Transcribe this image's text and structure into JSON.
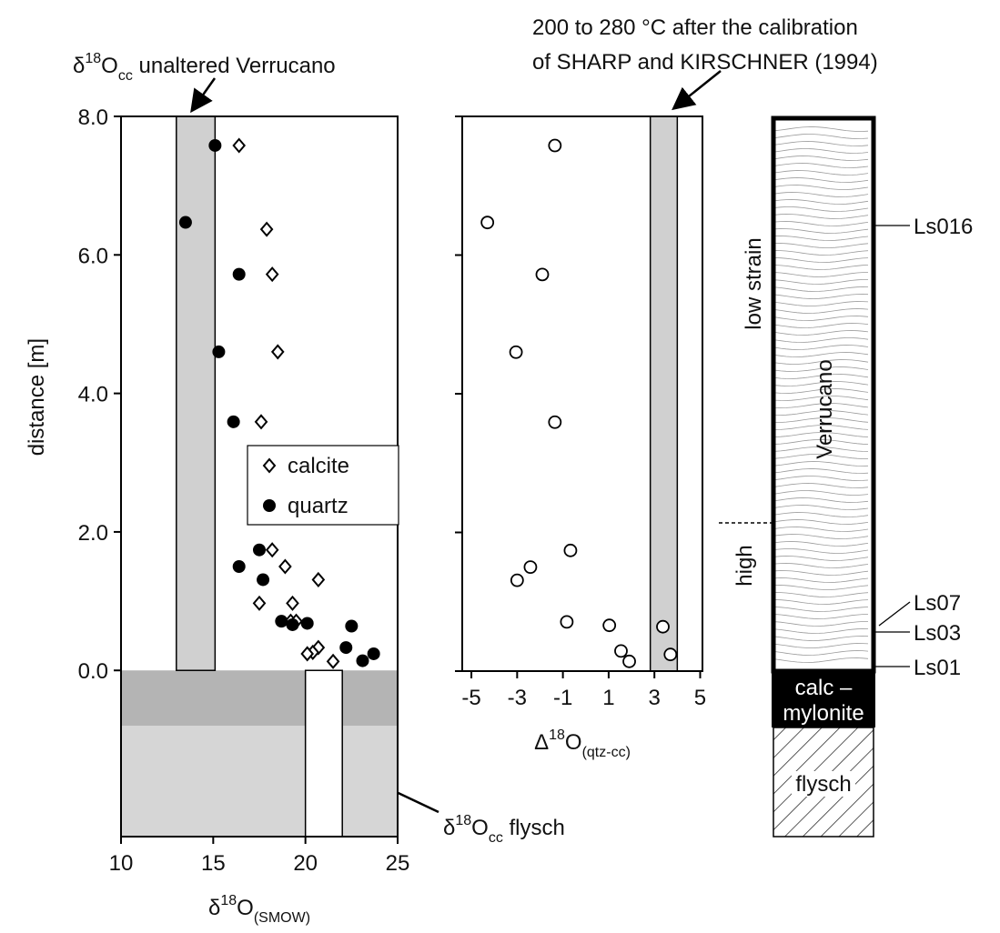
{
  "chart_data": [
    {
      "type": "scatter",
      "xlabel": {
        "pre": "δ",
        "sup": "18",
        "mid": "O",
        "sub": "(SMOW)"
      },
      "ylabel": "distance [m]",
      "xlim": [
        10,
        25
      ],
      "xticks": [
        10,
        15,
        20,
        25
      ],
      "ylim": [
        -2.4,
        8
      ],
      "yticks": [
        {
          "value": 0,
          "label": "0.0"
        },
        {
          "value": 2,
          "label": "2.0"
        },
        {
          "value": 4,
          "label": "4.0"
        },
        {
          "value": 6,
          "label": "6.0"
        },
        {
          "value": 8,
          "label": "8.0"
        }
      ],
      "zones": [
        {
          "y": [
            -2.4,
            -0.8
          ],
          "color": "#d6d6d6"
        },
        {
          "y": [
            -0.8,
            0
          ],
          "color": "#b4b4b4"
        }
      ],
      "bands": [
        {
          "x": [
            13,
            15.1
          ],
          "y": [
            0,
            8
          ],
          "color": "#d0d0d0",
          "label": {
            "pre": "δ",
            "sup": "18",
            "mid": "O",
            "sub": "cc",
            "post": " unaltered Verrucano"
          }
        },
        {
          "x": [
            20,
            22
          ],
          "y": [
            -2.4,
            0
          ],
          "color": "#ffffff",
          "label": {
            "pre": "δ",
            "sup": "18",
            "mid": "O",
            "sub": "cc",
            "post": " flysch"
          }
        }
      ],
      "legend": true,
      "series": [
        {
          "name": "calcite",
          "marker": "diamond",
          "color": "#000000",
          "x": [
            16.4,
            17.9,
            18.2,
            18.5,
            17.6,
            18.2,
            18.9,
            20.7,
            17.5,
            19.3,
            19.2,
            19.5,
            20.7,
            20.4,
            20.1,
            21.5
          ],
          "values": [
            7.58,
            6.37,
            5.72,
            4.6,
            3.59,
            1.74,
            1.5,
            1.31,
            0.97,
            0.97,
            0.71,
            0.71,
            0.33,
            0.26,
            0.24,
            0.13
          ]
        },
        {
          "name": "quartz",
          "marker": "circle",
          "color": "#000000",
          "x": [
            15.1,
            13.5,
            16.4,
            15.3,
            16.1,
            17.5,
            16.4,
            17.7,
            18.7,
            19.3,
            20.1,
            22.5,
            22.2,
            23.1,
            23.7
          ],
          "values": [
            7.58,
            6.47,
            5.72,
            4.6,
            3.59,
            1.74,
            1.5,
            1.31,
            0.71,
            0.66,
            0.68,
            0.64,
            0.33,
            0.14,
            0.24
          ]
        }
      ]
    },
    {
      "type": "scatter",
      "xlabel": {
        "pre": "Δ",
        "sup": "18",
        "mid": "O",
        "sub": "(qtz-cc)"
      },
      "xlim": [
        -5.4,
        5.1
      ],
      "xticks": [
        -5,
        -3,
        -1,
        1,
        3,
        5
      ],
      "ylim": [
        0,
        8
      ],
      "yticks": [
        0,
        2,
        4,
        6,
        8
      ],
      "ytick_labels": false,
      "bands": [
        {
          "x": [
            2.82,
            4.0
          ],
          "y": [
            0,
            8
          ],
          "color": "#d0d0d0",
          "label": {
            "line1": "200 to 280 °C after the calibration",
            "line2": "of SHARP and KIRSCHNER (1994)"
          }
        }
      ],
      "series": [
        {
          "marker": "open-circle",
          "color": "#000000",
          "x": [
            -1.35,
            -4.3,
            -1.9,
            -3.05,
            -1.35,
            -0.67,
            -2.42,
            -3.0,
            -0.83,
            1.03,
            3.37,
            1.54,
            1.9,
            3.7
          ],
          "values": [
            7.58,
            6.47,
            5.72,
            4.6,
            3.59,
            1.74,
            1.5,
            1.31,
            0.71,
            0.66,
            0.64,
            0.29,
            0.14,
            0.24
          ]
        }
      ]
    }
  ],
  "lithology": {
    "upper": "low strain",
    "lower": "high",
    "unit": "Verrucano",
    "mylonite": [
      "calc –",
      "mylonite"
    ],
    "base": "flysch",
    "samples": [
      "Ls016",
      "Ls07",
      "Ls03",
      "Ls01"
    ]
  }
}
